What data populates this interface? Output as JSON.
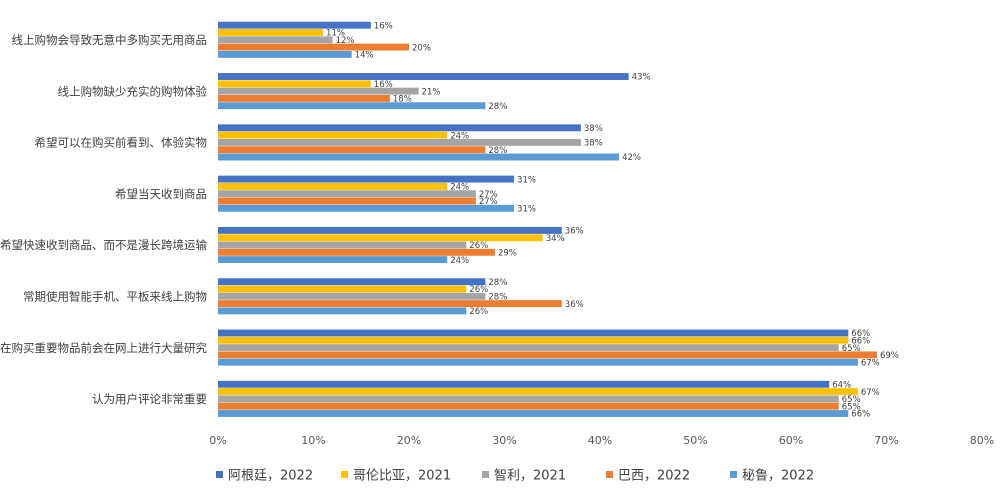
{
  "chart_data": {
    "type": "bar",
    "orientation": "horizontal",
    "categories": [
      "线上购物会导致无意中多购买无用商品",
      "线上购物缺少充实的购物体验",
      "希望可以在购买前看到、体验实物",
      "希望当天收到商品",
      "希望快速收到商品、而不是漫长跨境运输",
      "常期使用智能手机、平板来线上购物",
      "在购买重要物品前会在网上进行大量研究",
      "认为用户评论非常重要"
    ],
    "series": [
      {
        "name": "阿根廷，2022",
        "color": "#4472C4",
        "values": [
          16,
          43,
          38,
          31,
          36,
          28,
          66,
          64
        ]
      },
      {
        "name": "哥伦比亚，2021",
        "color": "#FFC000",
        "values": [
          11,
          16,
          24,
          24,
          34,
          26,
          66,
          67
        ]
      },
      {
        "name": "智利，2021",
        "color": "#A5A5A5",
        "values": [
          12,
          21,
          38,
          27,
          26,
          28,
          65,
          65
        ]
      },
      {
        "name": "巴西，2022",
        "color": "#ED7D31",
        "values": [
          20,
          18,
          28,
          27,
          29,
          36,
          69,
          65
        ]
      },
      {
        "name": "秘鲁，2022",
        "color": "#5B9BD5",
        "values": [
          14,
          28,
          42,
          31,
          24,
          26,
          67,
          66
        ]
      }
    ],
    "value_suffix": "%",
    "xlim": [
      0,
      80
    ],
    "x_ticks": [
      "0%",
      "10%",
      "20%",
      "30%",
      "40%",
      "50%",
      "60%",
      "70%",
      "80%"
    ],
    "grid": false,
    "legend_position": "bottom",
    "title": "",
    "xlabel": "",
    "ylabel": ""
  }
}
